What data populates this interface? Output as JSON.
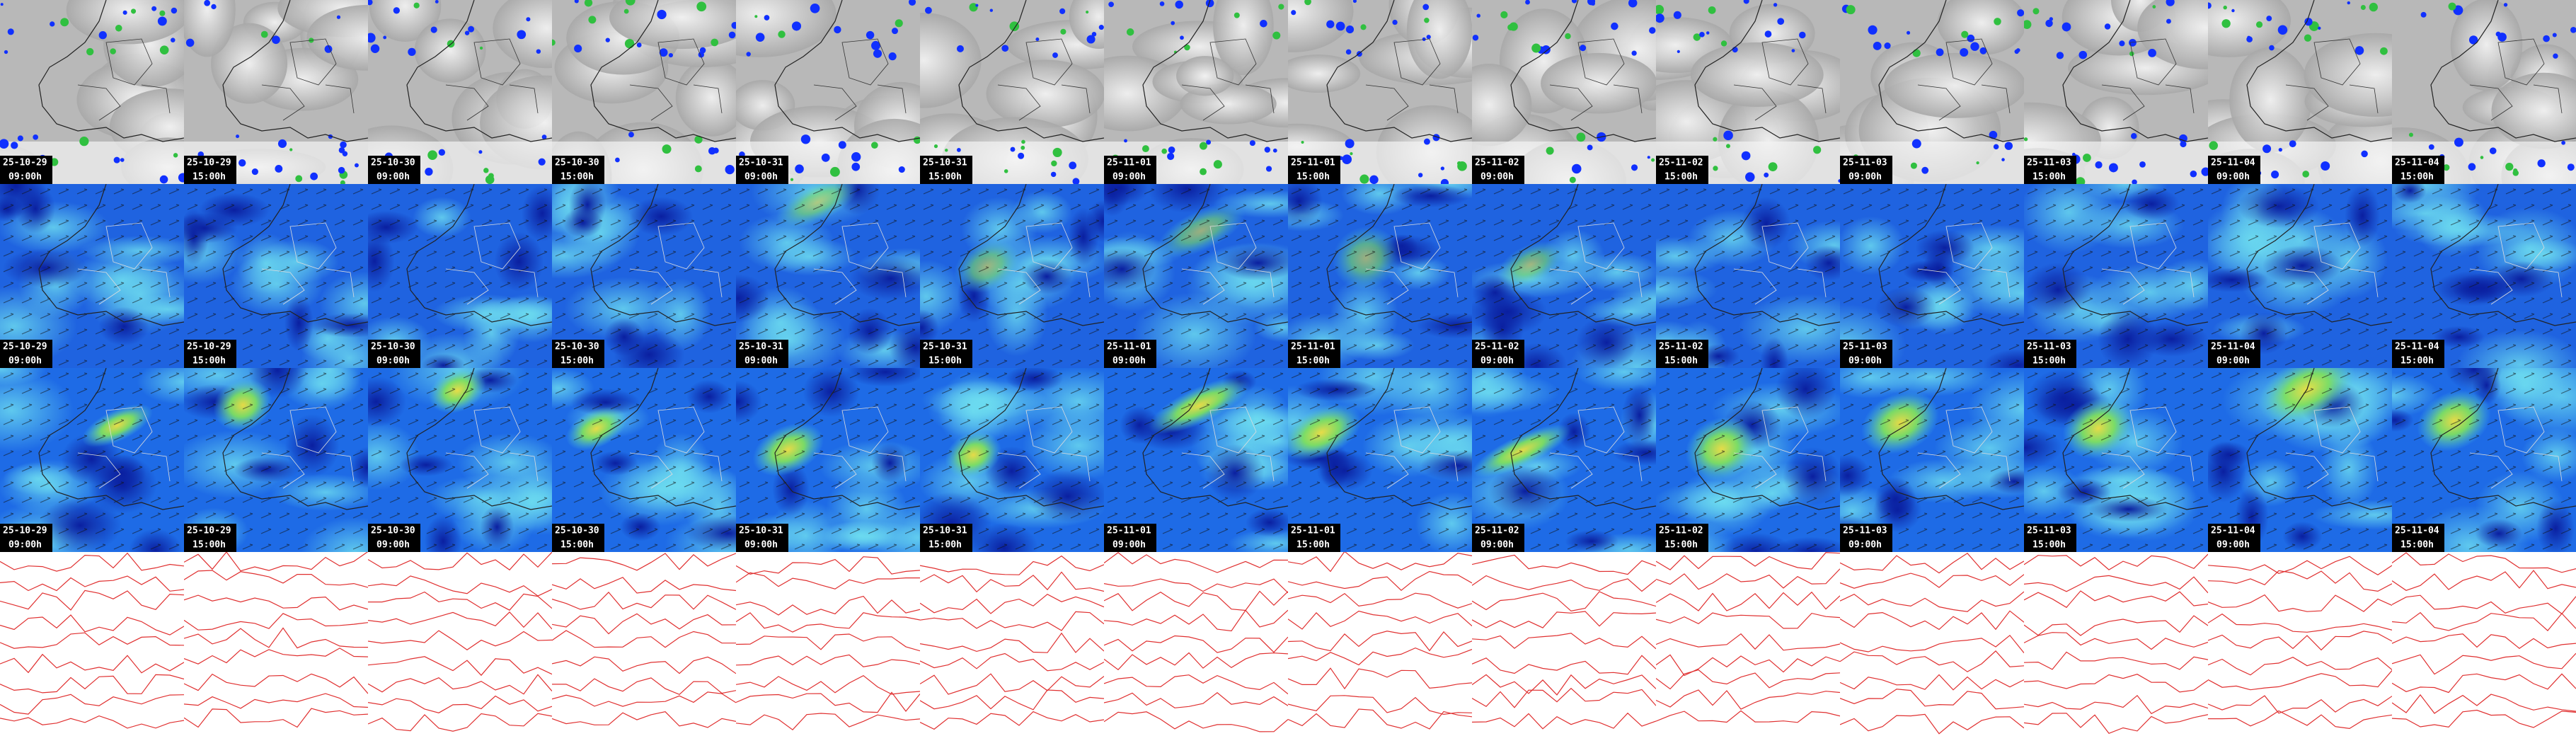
{
  "columns": [
    {
      "date": "25-10-29",
      "time": "09:00h"
    },
    {
      "date": "25-10-29",
      "time": "15:00h"
    },
    {
      "date": "25-10-30",
      "time": "09:00h"
    },
    {
      "date": "25-10-30",
      "time": "15:00h"
    },
    {
      "date": "25-10-31",
      "time": "09:00h"
    },
    {
      "date": "25-10-31",
      "time": "15:00h"
    },
    {
      "date": "25-11-01",
      "time": "09:00h"
    },
    {
      "date": "25-11-01",
      "time": "15:00h"
    },
    {
      "date": "25-11-02",
      "time": "09:00h"
    },
    {
      "date": "25-11-02",
      "time": "15:00h"
    },
    {
      "date": "25-11-03",
      "time": "09:00h"
    },
    {
      "date": "25-11-03",
      "time": "15:00h"
    },
    {
      "date": "25-11-04",
      "time": "09:00h"
    },
    {
      "date": "25-11-04",
      "time": "15:00h"
    }
  ]
}
